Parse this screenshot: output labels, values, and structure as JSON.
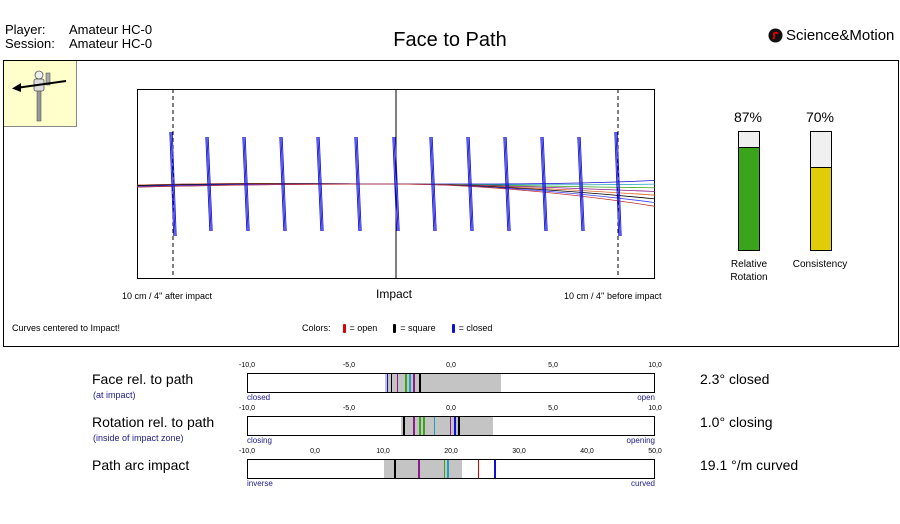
{
  "header": {
    "player_label": "Player:",
    "player_value": "Amateur HC-0",
    "session_label": "Session:",
    "session_value": "Amateur HC-0",
    "title": "Face to Path",
    "brand": "Science&Motion"
  },
  "plot": {
    "left_label": "10 cm / 4'' after impact",
    "center_label": "Impact",
    "right_label": "10 cm / 4'' before impact",
    "note": "Curves centered to Impact!",
    "legend_title": "Colors:",
    "legend": [
      {
        "label": "= open",
        "color": "#e00000"
      },
      {
        "label": "= square",
        "color": "#000000"
      },
      {
        "label": "= closed",
        "color": "#1010d0"
      }
    ]
  },
  "gauges": [
    {
      "percent": "87%",
      "value": 87,
      "name_line1": "Relative",
      "name_line2": "Rotation",
      "color": "#3aa41a"
    },
    {
      "percent": "70%",
      "value": 70,
      "name_line1": "Consistency",
      "name_line2": "",
      "color": "#e0cd0a"
    }
  ],
  "metrics": [
    {
      "label": "Face rel. to path",
      "sublabel": "(at impact)",
      "value": "2.3° closed",
      "scale": {
        "min": -10,
        "max": 10,
        "labels": [
          "-10,0",
          "-5,0",
          "0,0",
          "5,0",
          "10,0"
        ],
        "label_values": [
          -10,
          -5,
          0,
          5,
          10
        ]
      },
      "left_end": "closed",
      "right_end": "open",
      "range": [
        -3.3,
        2.4
      ],
      "ticks": [
        {
          "v": -3.2,
          "c": "#1010d0"
        },
        {
          "v": -3.0,
          "c": "#000000"
        },
        {
          "v": -2.7,
          "c": "#8b1a8b"
        },
        {
          "v": -2.3,
          "c": "#3aa41a"
        },
        {
          "v": -2.1,
          "c": "#20a0c0"
        },
        {
          "v": -1.9,
          "c": "#8b1a8b"
        },
        {
          "v": -1.6,
          "c": "#000000"
        }
      ]
    },
    {
      "label": "Rotation rel. to path",
      "sublabel": "(inside of impact zone)",
      "value": "1.0° closing",
      "scale": {
        "min": -10,
        "max": 10,
        "labels": [
          "-10,0",
          "-5,0",
          "0,0",
          "5,0",
          "10,0"
        ],
        "label_values": [
          -10,
          -5,
          0,
          5,
          10
        ]
      },
      "left_end": "closing",
      "right_end": "opening",
      "range": [
        -2.5,
        2.0
      ],
      "ticks": [
        {
          "v": -2.4,
          "c": "#000000"
        },
        {
          "v": -1.9,
          "c": "#8b1a8b"
        },
        {
          "v": -1.6,
          "c": "#3aa41a"
        },
        {
          "v": -1.4,
          "c": "#3aa41a"
        },
        {
          "v": -0.9,
          "c": "#20a0c0"
        },
        {
          "v": -0.1,
          "c": "#8b1a8b"
        },
        {
          "v": 0.1,
          "c": "#1010d0"
        },
        {
          "v": 0.3,
          "c": "#000000"
        }
      ]
    },
    {
      "label": "Path arc impact",
      "sublabel": "",
      "value": "19.1 °/m curved",
      "scale": {
        "min": -10,
        "max": 50,
        "labels": [
          "-10,0",
          "0,0",
          "10,0",
          "20,0",
          "30,0",
          "40,0",
          "50,0"
        ],
        "label_values": [
          -10,
          0,
          10,
          20,
          30,
          40,
          50
        ]
      },
      "left_end": "inverse",
      "right_end": "curved",
      "range": [
        10.0,
        21.5
      ],
      "ticks": [
        {
          "v": 11.5,
          "c": "#000000"
        },
        {
          "v": 15.0,
          "c": "#8b1a8b"
        },
        {
          "v": 18.8,
          "c": "#3aa41a"
        },
        {
          "v": 19.3,
          "c": "#20a0c0"
        },
        {
          "v": 23.8,
          "c": "#e00000"
        },
        {
          "v": 26.2,
          "c": "#1010d0"
        }
      ]
    }
  ]
}
